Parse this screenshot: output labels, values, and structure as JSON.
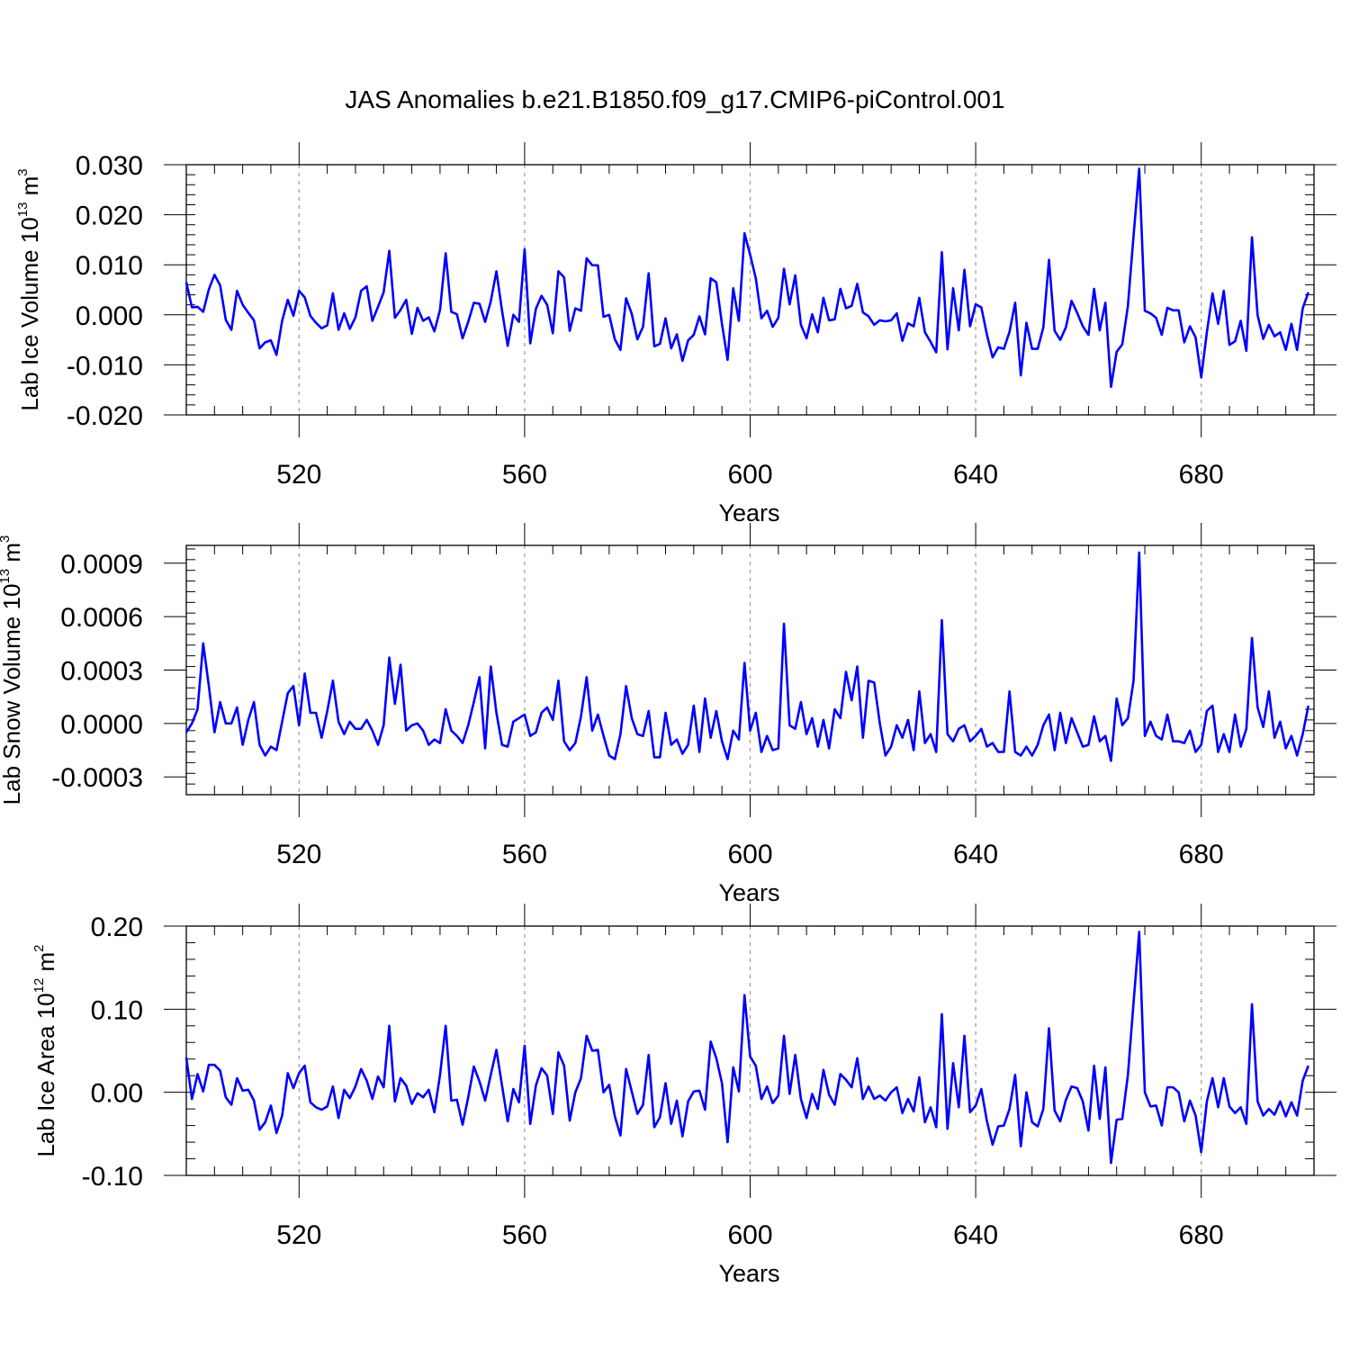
{
  "figure": {
    "title": "JAS Anomalies b.e21.B1850.f09_g17.CMIP6-piControl.001"
  },
  "style": {
    "line_color": "#0000ff",
    "grid_color": "#999999"
  },
  "chart_data": [
    {
      "type": "line",
      "xlabel": "Years",
      "ylabel": "Lab Ice Volume 10",
      "ylabel_exponent": "13",
      "ylabel_unit": " m",
      "ylabel_unit_exponent": "3",
      "xlim": [
        500,
        700
      ],
      "ylim": [
        -0.02,
        0.03
      ],
      "xticks": [
        520,
        560,
        600,
        640,
        680
      ],
      "xtick_labels": [
        "520",
        "560",
        "600",
        "640",
        "680"
      ],
      "yticks": [
        -0.02,
        -0.01,
        0.0,
        0.01,
        0.02,
        0.03
      ],
      "ytick_labels": [
        "-0.020",
        "-0.010",
        "0.000",
        "0.010",
        "0.020",
        "0.030"
      ],
      "x_start": 500,
      "x_step": 1,
      "series": [
        {
          "values": [
            0.0065,
            0.0015,
            0.0016,
            0.0006,
            0.0051,
            0.008,
            0.0059,
            -0.001,
            -0.003,
            0.0048,
            0.002,
            0.0004,
            -0.0011,
            -0.0067,
            -0.0055,
            -0.0051,
            -0.008,
            -0.0012,
            0.003,
            -0.0002,
            0.0048,
            0.0035,
            -0.0002,
            -0.0016,
            -0.0027,
            -0.0021,
            0.0043,
            -0.003,
            0.0003,
            -0.0028,
            -0.0005,
            0.0048,
            0.0057,
            -0.0012,
            0.0016,
            0.0045,
            0.0128,
            -0.0006,
            0.001,
            0.003,
            -0.0038,
            0.0014,
            -0.0012,
            -0.0005,
            -0.0033,
            0.001,
            0.0123,
            0.0006,
            0.0001,
            -0.0047,
            -0.0014,
            0.0024,
            0.0022,
            -0.0014,
            0.0027,
            0.0087,
            0.0008,
            -0.0062,
            0.0,
            -0.0014,
            0.0131,
            -0.0057,
            0.0012,
            0.0038,
            0.002,
            -0.0037,
            0.0087,
            0.0075,
            -0.0032,
            0.0013,
            0.0008,
            0.0113,
            0.0099,
            0.0099,
            -0.0004,
            0.0,
            -0.0049,
            -0.007,
            0.0033,
            0.0002,
            -0.0049,
            -0.0024,
            0.0083,
            -0.0063,
            -0.0058,
            -0.0007,
            -0.0067,
            -0.0039,
            -0.0092,
            -0.0051,
            -0.004,
            -0.0003,
            -0.0039,
            0.0073,
            0.0065,
            -0.0018,
            -0.009,
            0.0053,
            -0.0012,
            0.0163,
            0.012,
            0.0073,
            -0.0007,
            0.0008,
            -0.0024,
            -0.0006,
            0.0092,
            0.0021,
            0.0079,
            -0.002,
            -0.0047,
            0.0001,
            -0.0035,
            0.0034,
            -0.0011,
            -0.0009,
            0.0052,
            0.0013,
            0.0018,
            0.0062,
            0.0005,
            -0.0003,
            -0.002,
            -0.0011,
            -0.0013,
            -0.0011,
            0.0003,
            -0.0052,
            -0.0017,
            -0.0023,
            0.0034,
            -0.0035,
            -0.0054,
            -0.0075,
            0.0125,
            -0.0069,
            0.0053,
            -0.0031,
            0.009,
            -0.0023,
            0.0021,
            0.0015,
            -0.004,
            -0.0085,
            -0.0065,
            -0.0068,
            -0.0034,
            0.0024,
            -0.0121,
            -0.0016,
            -0.0068,
            -0.0068,
            -0.0025,
            0.011,
            -0.0032,
            -0.005,
            -0.0025,
            0.0028,
            0.0004,
            -0.0023,
            -0.004,
            0.0052,
            -0.0031,
            0.0024,
            -0.0144,
            -0.0074,
            -0.0059,
            0.0018,
            0.0158,
            0.0292,
            0.0008,
            0.0003,
            -0.0006,
            -0.004,
            0.0014,
            0.0009,
            0.0009,
            -0.0055,
            -0.0023,
            -0.0045,
            -0.0125,
            -0.0035,
            0.0043,
            -0.0018,
            0.0048,
            -0.006,
            -0.0053,
            -0.0012,
            -0.0072,
            0.0155,
            -0.0001,
            -0.0048,
            -0.002,
            -0.0043,
            -0.0035,
            -0.007,
            -0.0018,
            -0.007,
            0.0013,
            0.0045
          ]
        }
      ]
    },
    {
      "type": "line",
      "xlabel": "Years",
      "ylabel": "Lab Snow Volume 10",
      "ylabel_exponent": "13",
      "ylabel_unit": " m",
      "ylabel_unit_exponent": "3",
      "xlim": [
        500,
        700
      ],
      "ylim": [
        -0.0004,
        0.001
      ],
      "xticks": [
        520,
        560,
        600,
        640,
        680
      ],
      "xtick_labels": [
        "520",
        "560",
        "600",
        "640",
        "680"
      ],
      "yticks": [
        -0.0003,
        0.0,
        0.0003,
        0.0006,
        0.0009
      ],
      "ytick_labels": [
        "-0.0003",
        "0.0000",
        "0.0003",
        "0.0006",
        "0.0009"
      ],
      "x_start": 500,
      "x_step": 1,
      "series": [
        {
          "values": [
            -5e-05,
            0.0,
            8e-05,
            0.00045,
            0.00021,
            -5e-05,
            0.00012,
            0.0,
            0.0,
            9e-05,
            -0.00012,
            2e-05,
            0.00012,
            -0.00012,
            -0.00018,
            -0.00013,
            -0.00015,
            1e-05,
            0.00017,
            0.00021,
            -1e-05,
            0.00028,
            6e-05,
            6e-05,
            -8e-05,
            7e-05,
            0.00024,
            1e-05,
            -6e-05,
            1e-05,
            -3e-05,
            -3e-05,
            2e-05,
            -4e-05,
            -0.00012,
            -1e-05,
            0.00037,
            0.00011,
            0.00033,
            -4e-05,
            -1e-05,
            0.0,
            -4e-05,
            -0.00012,
            -9e-05,
            -0.00011,
            8e-05,
            -4e-05,
            -7e-05,
            -0.00011,
            -1e-05,
            0.00012,
            0.00026,
            -0.00014,
            0.00032,
            6e-05,
            -0.00012,
            -0.00013,
            1e-05,
            3e-05,
            5e-05,
            -7e-05,
            -5e-05,
            6e-05,
            9e-05,
            2e-05,
            0.00024,
            -0.0001,
            -0.00015,
            -0.00011,
            4e-05,
            0.00026,
            -4e-05,
            5e-05,
            -7e-05,
            -0.00018,
            -0.0002,
            -6e-05,
            0.00021,
            3e-05,
            -6e-05,
            -7e-05,
            7e-05,
            -0.00019,
            -0.00019,
            6e-05,
            -0.00012,
            -9e-05,
            -0.00017,
            -0.00012,
            0.0001,
            -0.00016,
            0.00014,
            -8e-05,
            7e-05,
            -0.0001,
            -0.0002,
            -4e-05,
            -9e-05,
            0.00034,
            -4e-05,
            6e-05,
            -0.00016,
            -7e-05,
            -0.00015,
            -0.00014,
            0.00056,
            -1e-05,
            -3e-05,
            0.00012,
            -6e-05,
            3e-05,
            -0.00013,
            2e-05,
            -0.00014,
            8e-05,
            3e-05,
            0.00029,
            0.00013,
            0.00032,
            -8e-05,
            0.00024,
            0.00023,
            0.0,
            -0.00018,
            -0.00013,
            -1e-05,
            -8e-05,
            2e-05,
            -0.00015,
            0.00018,
            -0.00011,
            -6e-05,
            -0.00016,
            0.00058,
            -6e-05,
            -0.0001,
            -3e-05,
            -1e-05,
            -0.0001,
            -7e-05,
            -3e-05,
            -0.00013,
            -0.00011,
            -0.00016,
            -0.00016,
            0.00018,
            -0.00016,
            -0.00018,
            -0.00013,
            -0.00018,
            -0.00012,
            -1e-05,
            5e-05,
            -0.00015,
            6e-05,
            -0.00011,
            3e-05,
            -5e-05,
            -0.00013,
            -0.00012,
            4e-05,
            -0.0001,
            -7e-05,
            -0.00021,
            0.00014,
            -1e-05,
            3e-05,
            0.00024,
            0.00096,
            -7e-05,
            1e-05,
            -7e-05,
            -9e-05,
            5e-05,
            -0.0001,
            -0.0001,
            -0.00011,
            -4e-05,
            -0.00016,
            -0.00012,
            7e-05,
            0.0001,
            -0.00016,
            -6e-05,
            -0.00016,
            5e-05,
            -0.00013,
            -3e-05,
            0.00048,
            9e-05,
            -2e-05,
            0.00018,
            -8e-05,
            1e-05,
            -0.00014,
            -7e-05,
            -0.00018,
            -6e-05,
            0.0001
          ]
        }
      ]
    },
    {
      "type": "line",
      "xlabel": "Years",
      "ylabel": "Lab Ice Area 10",
      "ylabel_exponent": "12",
      "ylabel_unit": " m",
      "ylabel_unit_exponent": "2",
      "xlim": [
        500,
        700
      ],
      "ylim": [
        -0.1,
        0.2
      ],
      "xticks": [
        520,
        560,
        600,
        640,
        680
      ],
      "xtick_labels": [
        "520",
        "560",
        "600",
        "640",
        "680"
      ],
      "yticks": [
        -0.1,
        0.0,
        0.1,
        0.2
      ],
      "ytick_labels": [
        "-0.10",
        "0.00",
        "0.10",
        "0.20"
      ],
      "x_start": 500,
      "x_step": 1,
      "series": [
        {
          "values": [
            0.042,
            -0.008,
            0.022,
            0.001,
            0.033,
            0.033,
            0.026,
            -0.006,
            -0.015,
            0.017,
            0.002,
            0.003,
            -0.01,
            -0.045,
            -0.036,
            -0.016,
            -0.049,
            -0.028,
            0.023,
            0.005,
            0.023,
            0.032,
            -0.012,
            -0.018,
            -0.021,
            -0.017,
            0.007,
            -0.031,
            0.003,
            -0.007,
            0.007,
            0.028,
            0.014,
            -0.008,
            0.019,
            0.006,
            0.08,
            -0.011,
            0.017,
            0.008,
            -0.014,
            -0.001,
            -0.006,
            0.003,
            -0.024,
            0.021,
            0.08,
            -0.01,
            -0.009,
            -0.039,
            -0.006,
            0.031,
            0.013,
            -0.01,
            0.021,
            0.051,
            0.008,
            -0.035,
            0.004,
            -0.012,
            0.056,
            -0.038,
            0.008,
            0.029,
            0.02,
            -0.026,
            0.048,
            0.032,
            -0.034,
            0.0,
            0.017,
            0.068,
            0.05,
            0.051,
            0.0,
            0.009,
            -0.029,
            -0.052,
            0.028,
            0.001,
            -0.026,
            -0.015,
            0.045,
            -0.042,
            -0.03,
            0.011,
            -0.038,
            -0.01,
            -0.053,
            -0.011,
            0.001,
            0.002,
            -0.021,
            0.061,
            0.041,
            0.011,
            -0.06,
            0.03,
            0.001,
            0.117,
            0.043,
            0.032,
            -0.008,
            0.007,
            -0.013,
            -0.004,
            0.068,
            -0.002,
            0.045,
            -0.008,
            -0.031,
            -0.002,
            -0.02,
            0.027,
            -0.003,
            -0.015,
            0.022,
            0.015,
            0.006,
            0.041,
            -0.008,
            0.007,
            -0.008,
            -0.004,
            -0.01,
            0.0,
            0.006,
            -0.025,
            -0.008,
            -0.023,
            0.018,
            -0.036,
            -0.018,
            -0.042,
            0.094,
            -0.044,
            0.035,
            -0.018,
            0.068,
            -0.024,
            -0.016,
            0.004,
            -0.035,
            -0.063,
            -0.041,
            -0.04,
            -0.02,
            0.021,
            -0.065,
            0.0,
            -0.036,
            -0.041,
            -0.02,
            0.077,
            -0.022,
            -0.035,
            -0.009,
            0.007,
            0.005,
            -0.011,
            -0.046,
            0.032,
            -0.032,
            0.03,
            -0.085,
            -0.033,
            -0.032,
            0.021,
            0.108,
            0.193,
            0.0,
            -0.017,
            -0.016,
            -0.04,
            0.006,
            0.006,
            0.0,
            -0.035,
            -0.01,
            -0.028,
            -0.072,
            -0.011,
            0.017,
            -0.018,
            0.017,
            -0.017,
            -0.025,
            -0.018,
            -0.038,
            0.106,
            -0.011,
            -0.028,
            -0.02,
            -0.027,
            -0.011,
            -0.029,
            -0.012,
            -0.028,
            0.014,
            0.032
          ]
        }
      ]
    }
  ]
}
